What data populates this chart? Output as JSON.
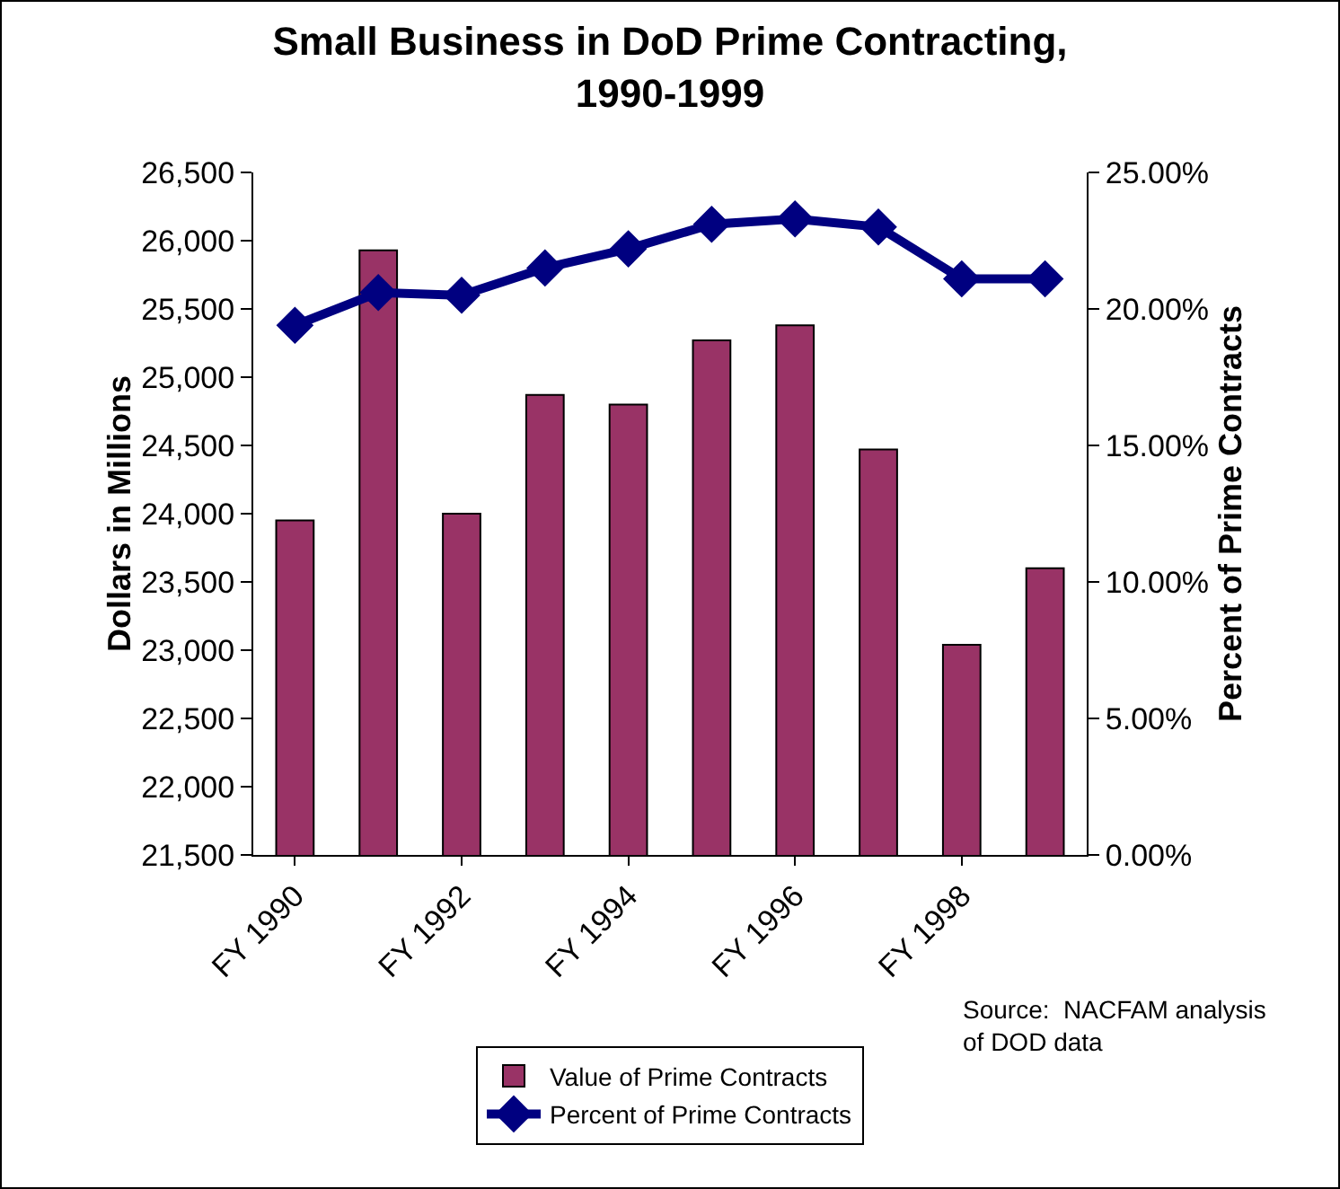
{
  "chart_data": {
    "type": "bar",
    "title": "Small Business in DoD Prime Contracting,\n1990-1999",
    "ylabel": "Dollars in Millions",
    "y2label": "Percent of Prime Contracts",
    "categories": [
      "FY 1990",
      null,
      "FY 1992",
      null,
      "FY 1994",
      null,
      "FY 1996",
      null,
      "FY 1998",
      null
    ],
    "series": [
      {
        "name": "Value of Prime Contracts",
        "color": "#993366",
        "values": [
          23950,
          25930,
          24000,
          24870,
          24800,
          25270,
          25380,
          24470,
          23040,
          23600
        ]
      },
      {
        "name": "Percent of Prime Contracts",
        "type": "line",
        "axis": "y2",
        "color": "#000080",
        "values": [
          19.4,
          20.6,
          20.5,
          21.5,
          22.2,
          23.1,
          23.3,
          23.0,
          21.1,
          21.1
        ]
      }
    ],
    "ylim": [
      21500,
      26500
    ],
    "yticks": [
      {
        "value": 21500,
        "label": "21,500"
      },
      {
        "value": 22000,
        "label": "22,000"
      },
      {
        "value": 22500,
        "label": "22,500"
      },
      {
        "value": 23000,
        "label": "23,000"
      },
      {
        "value": 23500,
        "label": "23,500"
      },
      {
        "value": 24000,
        "label": "24,000"
      },
      {
        "value": 24500,
        "label": "24,500"
      },
      {
        "value": 25000,
        "label": "25,000"
      },
      {
        "value": 25500,
        "label": "25,500"
      },
      {
        "value": 26000,
        "label": "26,000"
      },
      {
        "value": 26500,
        "label": "26,500"
      }
    ],
    "y2lim": [
      0,
      25
    ],
    "y2ticks": [
      {
        "value": 0,
        "label": "0.00%"
      },
      {
        "value": 5,
        "label": "5.00%"
      },
      {
        "value": 10,
        "label": "10.00%"
      },
      {
        "value": 15,
        "label": "15.00%"
      },
      {
        "value": 20,
        "label": "20.00%"
      },
      {
        "value": 25,
        "label": "25.00%"
      }
    ],
    "legend": "bottom",
    "marker": "diamond",
    "grid": false,
    "annotations": [
      "Source:  NACFAM analysis\nof DOD data"
    ]
  }
}
